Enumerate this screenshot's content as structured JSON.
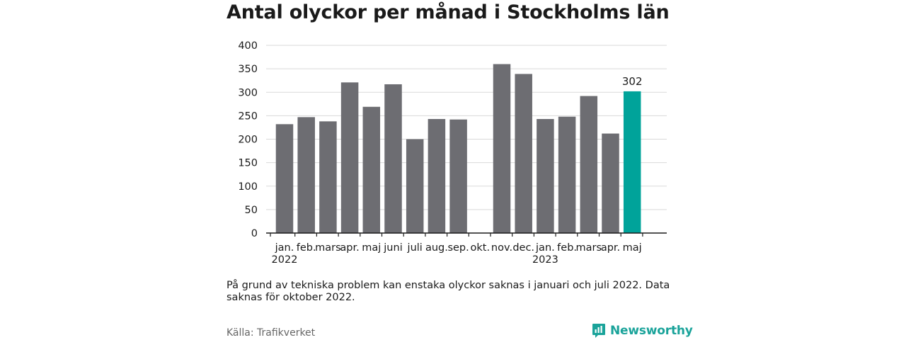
{
  "title": "Antal olyckor per månad i Stockholms län",
  "note": "På grund av tekniska problem kan enstaka olyckor saknas i januari och juli 2022. Data saknas för oktober 2022.",
  "source": "Källa: Trafikverket",
  "brand": "Newsworthy",
  "colors": {
    "bar": "#6d6d72",
    "highlight": "#00a39a",
    "grid": "#d9d9d9",
    "axis": "#1a1a1a",
    "brand": "#1aa39a"
  },
  "chart_data": {
    "type": "bar",
    "title": "Antal olyckor per månad i Stockholms län",
    "xlabel": "",
    "ylabel": "",
    "ylim": [
      0,
      400
    ],
    "yticks": [
      0,
      50,
      100,
      150,
      200,
      250,
      300,
      350,
      400
    ],
    "grid": true,
    "categories": [
      "jan.",
      "feb.",
      "mars",
      "apr.",
      "maj",
      "juni",
      "juli",
      "aug.",
      "sep.",
      "okt.",
      "nov.",
      "dec.",
      "jan.",
      "feb.",
      "mars",
      "apr.",
      "maj"
    ],
    "year_labels": [
      {
        "index": 0,
        "label": "2022"
      },
      {
        "index": 12,
        "label": "2023"
      }
    ],
    "values": [
      232,
      247,
      238,
      321,
      269,
      317,
      200,
      243,
      242,
      null,
      360,
      339,
      243,
      248,
      292,
      212,
      302
    ],
    "highlight_index": 16,
    "data_labels": [
      {
        "index": 16,
        "label": "302"
      }
    ]
  }
}
